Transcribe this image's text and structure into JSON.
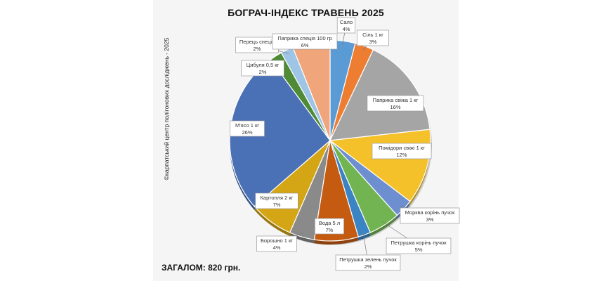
{
  "total_label": "ЗАГАЛОМ: 820 грн.",
  "side_label": "©карпатський центр полігонових досліджень - 2025",
  "chart_data": {
    "type": "pie",
    "title": "БОГРАЧ-ІНДЕКС ТРАВЕНЬ 2025",
    "slices": [
      {
        "label": "Сало",
        "value": 4,
        "value_label": "4%",
        "color": "#5b9bd5"
      },
      {
        "label": "Сіль 1 кг",
        "value": 3,
        "value_label": "3%",
        "color": "#ed7d31"
      },
      {
        "label": "Паприка свіжа 1 кг",
        "value": 16,
        "value_label": "16%",
        "color": "#a5a5a5"
      },
      {
        "label": "Помідори свіжі 1 кг",
        "value": 12,
        "value_label": "12%",
        "color": "#f5c12a"
      },
      {
        "label": "Морква корінь пучок",
        "value": 3,
        "value_label": "3%",
        "color": "#6d8fd0"
      },
      {
        "label": "Петрушка корінь пучок",
        "value": 5,
        "value_label": "5%",
        "color": "#72b451"
      },
      {
        "label": "Петрушка зелень пучок",
        "value": 2,
        "value_label": "2%",
        "color": "#3a84c4"
      },
      {
        "label": "Вода 5 л",
        "value": 7,
        "value_label": "7%",
        "color": "#c55a11"
      },
      {
        "label": "Борошно 1 кг",
        "value": 4,
        "value_label": "4%",
        "color": "#8a8a8a"
      },
      {
        "label": "Картопля 2 кг",
        "value": 7,
        "value_label": "7%",
        "color": "#d4a514"
      },
      {
        "label": "М'ясо 1 кг",
        "value": 26,
        "value_label": "26%",
        "color": "#4a70b5"
      },
      {
        "label": "Цибуля 0,5 кг",
        "value": 2,
        "value_label": "2%",
        "color": "#4f8a35"
      },
      {
        "label": "Перець спеція",
        "value": 2,
        "value_label": "2%",
        "color": "#9ec4e6"
      },
      {
        "label": "Паприка спеція 100 гр",
        "value": 6,
        "value_label": "6%",
        "color": "#f0a57a"
      }
    ]
  }
}
